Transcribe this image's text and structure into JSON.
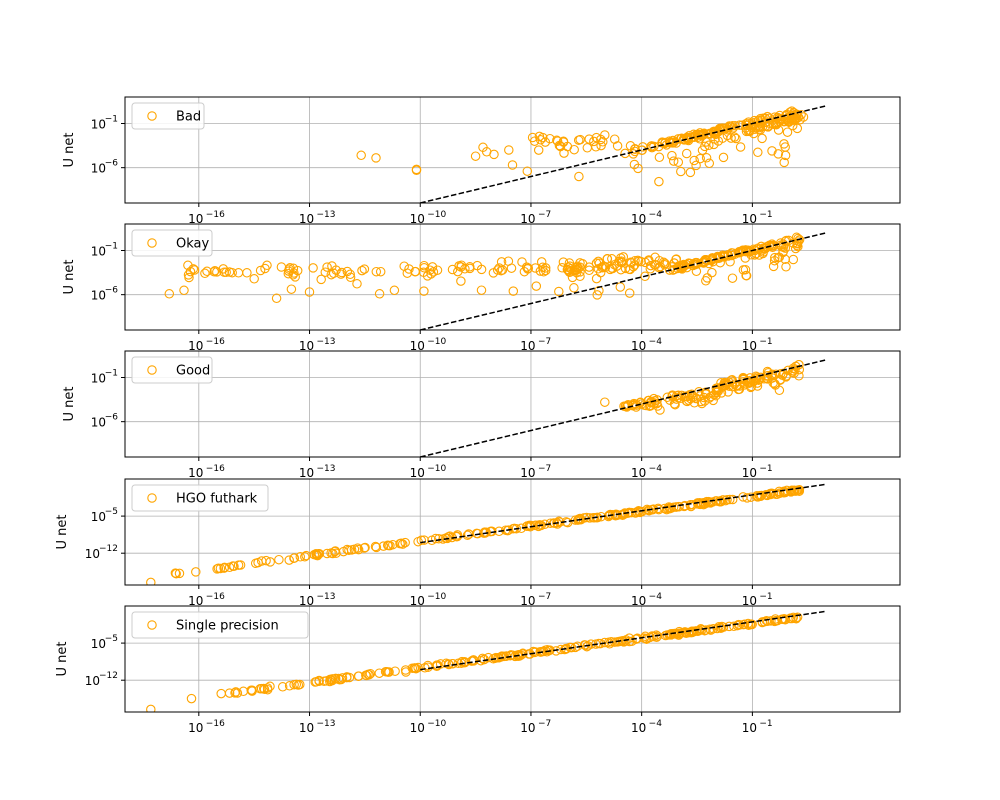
{
  "figure": {
    "marker_color": "#ffa500",
    "line_color": "#000000",
    "grid_color": "#b0b0b0",
    "axis_color": "#000000"
  },
  "chart_data": [
    {
      "type": "scatter",
      "legend": "Bad",
      "ylabel": "U net",
      "xscale": "log",
      "yscale": "log",
      "x_ticks": [
        1e-16,
        1e-13,
        1e-10,
        1e-07,
        0.0001,
        0.1
      ],
      "x_tick_labels": [
        {
          "base": "10",
          "exp": "−16"
        },
        {
          "base": "10",
          "exp": "−13"
        },
        {
          "base": "10",
          "exp": "−10"
        },
        {
          "base": "10",
          "exp": "−7"
        },
        {
          "base": "10",
          "exp": "−4"
        },
        {
          "base": "10",
          "exp": "−1"
        }
      ],
      "y_ticks": [
        0.1,
        1e-06
      ],
      "y_tick_labels": [
        {
          "base": "10",
          "exp": "−1"
        },
        {
          "base": "10",
          "exp": "−6"
        }
      ],
      "xlim": [
        1e-18,
        1000
      ],
      "ylim": [
        1e-10,
        100
      ],
      "grid": true,
      "legend_position": "upper left",
      "reference_line": {
        "style": "dashed",
        "x": [
          1e-10,
          10
        ],
        "y": [
          1e-10,
          10
        ]
      },
      "seed": 1
    },
    {
      "type": "scatter",
      "legend": "Okay",
      "ylabel": "U net",
      "xscale": "log",
      "yscale": "log",
      "x_ticks": [
        1e-16,
        1e-13,
        1e-10,
        1e-07,
        0.0001,
        0.1
      ],
      "x_tick_labels": [
        {
          "base": "10",
          "exp": "−16"
        },
        {
          "base": "10",
          "exp": "−13"
        },
        {
          "base": "10",
          "exp": "−10"
        },
        {
          "base": "10",
          "exp": "−7"
        },
        {
          "base": "10",
          "exp": "−4"
        },
        {
          "base": "10",
          "exp": "−1"
        }
      ],
      "y_ticks": [
        0.1,
        1e-06
      ],
      "y_tick_labels": [
        {
          "base": "10",
          "exp": "−1"
        },
        {
          "base": "10",
          "exp": "−6"
        }
      ],
      "xlim": [
        1e-18,
        1000
      ],
      "ylim": [
        1e-10,
        100
      ],
      "grid": true,
      "legend_position": "upper left",
      "reference_line": {
        "style": "dashed",
        "x": [
          1e-10,
          10
        ],
        "y": [
          1e-10,
          10
        ]
      },
      "seed": 2
    },
    {
      "type": "scatter",
      "legend": "Good",
      "ylabel": "U net",
      "xscale": "log",
      "yscale": "log",
      "x_ticks": [
        1e-16,
        1e-13,
        1e-10,
        1e-07,
        0.0001,
        0.1
      ],
      "x_tick_labels": [
        {
          "base": "10",
          "exp": "−16"
        },
        {
          "base": "10",
          "exp": "−13"
        },
        {
          "base": "10",
          "exp": "−10"
        },
        {
          "base": "10",
          "exp": "−7"
        },
        {
          "base": "10",
          "exp": "−4"
        },
        {
          "base": "10",
          "exp": "−1"
        }
      ],
      "y_ticks": [
        0.1,
        1e-06
      ],
      "y_tick_labels": [
        {
          "base": "10",
          "exp": "−1"
        },
        {
          "base": "10",
          "exp": "−6"
        }
      ],
      "xlim": [
        1e-18,
        1000
      ],
      "ylim": [
        1e-10,
        100
      ],
      "grid": true,
      "legend_position": "upper left",
      "reference_line": {
        "style": "dashed",
        "x": [
          1e-10,
          10
        ],
        "y": [
          1e-10,
          10
        ]
      },
      "seed": 3
    },
    {
      "type": "scatter",
      "legend": "HGO futhark",
      "ylabel": "U net",
      "xscale": "log",
      "yscale": "log",
      "x_ticks": [
        1e-16,
        1e-13,
        1e-10,
        1e-07,
        0.0001,
        0.1
      ],
      "x_tick_labels": [
        {
          "base": "10",
          "exp": "−16"
        },
        {
          "base": "10",
          "exp": "−13"
        },
        {
          "base": "10",
          "exp": "−10"
        },
        {
          "base": "10",
          "exp": "−7"
        },
        {
          "base": "10",
          "exp": "−4"
        },
        {
          "base": "10",
          "exp": "−1"
        }
      ],
      "y_ticks": [
        1e-05,
        1e-12
      ],
      "y_tick_labels": [
        {
          "base": "10",
          "exp": "−5"
        },
        {
          "base": "10",
          "exp": "−12"
        }
      ],
      "xlim": [
        1e-18,
        1000
      ],
      "ylim": [
        1e-18,
        100
      ],
      "grid": true,
      "legend_position": "upper left",
      "reference_line": {
        "style": "dashed",
        "x": [
          1e-10,
          10
        ],
        "y": [
          1e-10,
          10
        ]
      },
      "seed": 4
    },
    {
      "type": "scatter",
      "legend": "Single precision",
      "ylabel": "U net",
      "xscale": "log",
      "yscale": "log",
      "x_ticks": [
        1e-16,
        1e-13,
        1e-10,
        1e-07,
        0.0001,
        0.1
      ],
      "x_tick_labels": [
        {
          "base": "10",
          "exp": "−16"
        },
        {
          "base": "10",
          "exp": "−13"
        },
        {
          "base": "10",
          "exp": "−10"
        },
        {
          "base": "10",
          "exp": "−7"
        },
        {
          "base": "10",
          "exp": "−4"
        },
        {
          "base": "10",
          "exp": "−1"
        }
      ],
      "y_ticks": [
        1e-05,
        1e-12
      ],
      "y_tick_labels": [
        {
          "base": "10",
          "exp": "−5"
        },
        {
          "base": "10",
          "exp": "−12"
        }
      ],
      "xlim": [
        1e-18,
        1000
      ],
      "ylim": [
        1e-18,
        100
      ],
      "grid": true,
      "legend_position": "upper left",
      "reference_line": {
        "style": "dashed",
        "x": [
          1e-10,
          10
        ],
        "y": [
          1e-10,
          10
        ]
      },
      "seed": 5
    }
  ]
}
